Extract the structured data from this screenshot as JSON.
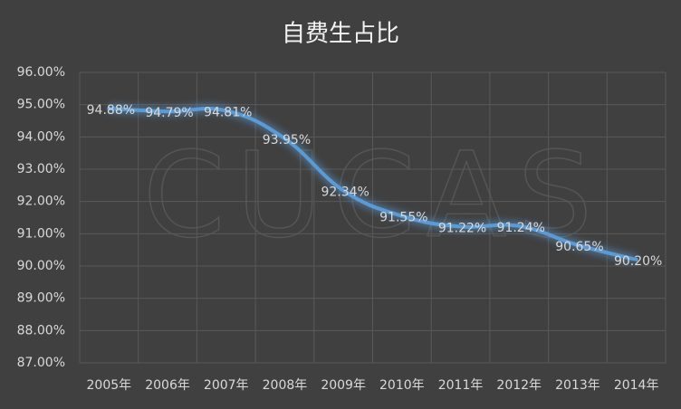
{
  "chart_data": {
    "type": "line",
    "title": "自费生占比",
    "watermark": "CUCAS",
    "categories": [
      "2005年",
      "2006年",
      "2007年",
      "2008年",
      "2009年",
      "2010年",
      "2011年",
      "2012年",
      "2013年",
      "2014年"
    ],
    "series": [
      {
        "name": "自费生占比",
        "color": "#5b9bd5",
        "values": [
          94.88,
          94.79,
          94.81,
          93.95,
          92.34,
          91.55,
          91.22,
          91.24,
          90.65,
          90.2
        ],
        "value_labels": [
          "94.88%",
          "94.79%",
          "94.81%",
          "93.95%",
          "92.34%",
          "91.55%",
          "91.22%",
          "91.24%",
          "90.65%",
          "90.20%"
        ]
      }
    ],
    "ylim": [
      87,
      96
    ],
    "yticks": [
      {
        "value": 87,
        "label": "87.00%"
      },
      {
        "value": 88,
        "label": "88.00%"
      },
      {
        "value": 89,
        "label": "89.00%"
      },
      {
        "value": 90,
        "label": "90.00%"
      },
      {
        "value": 91,
        "label": "91.00%"
      },
      {
        "value": 92,
        "label": "92.00%"
      },
      {
        "value": 93,
        "label": "93.00%"
      },
      {
        "value": 94,
        "label": "94.00%"
      },
      {
        "value": 95,
        "label": "95.00%"
      },
      {
        "value": 96,
        "label": "96.00%"
      }
    ],
    "grid": true
  }
}
